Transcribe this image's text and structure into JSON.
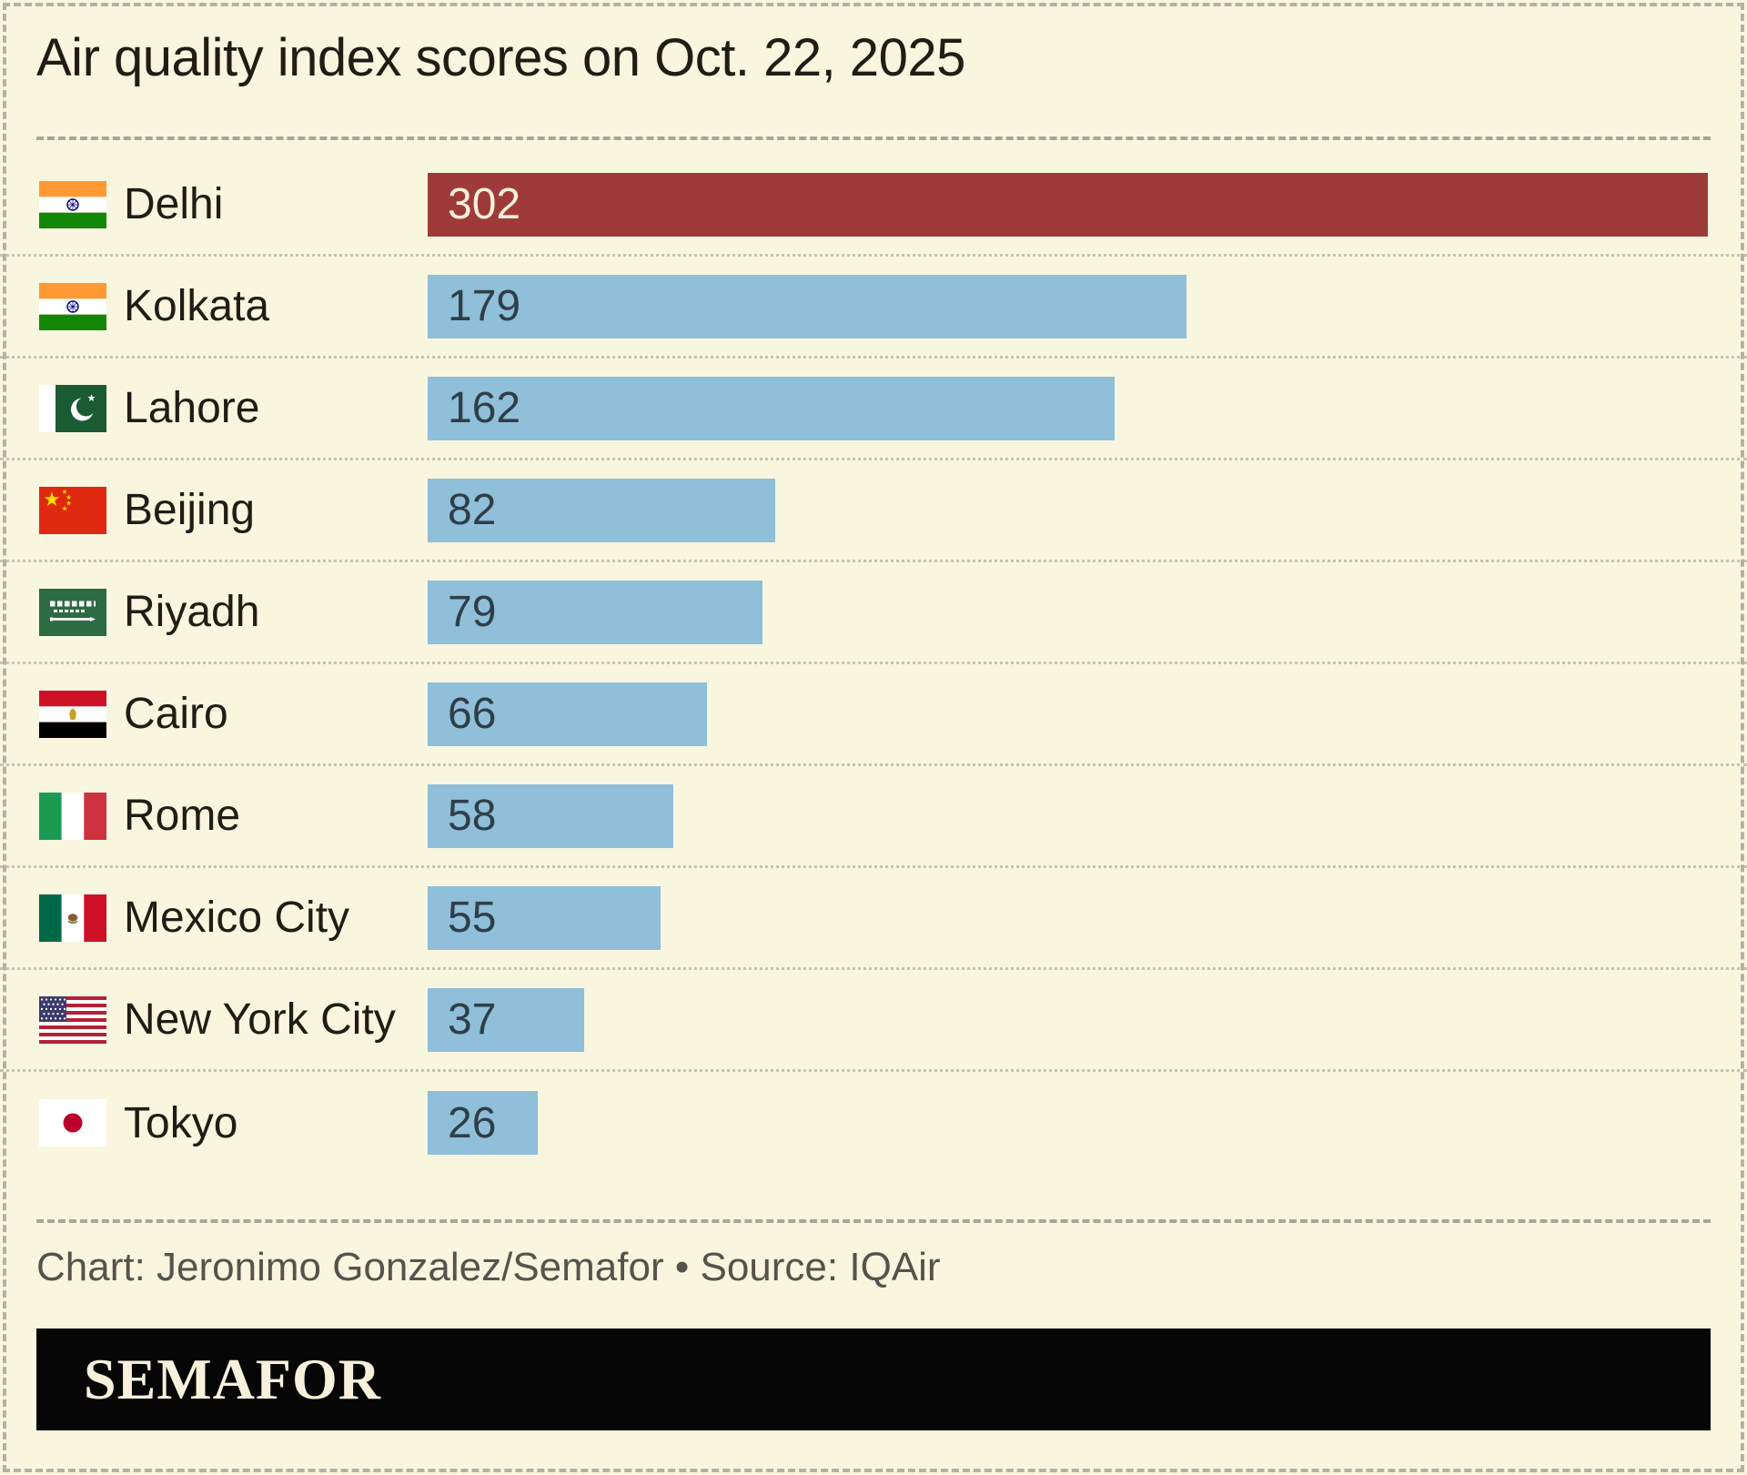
{
  "title": "Air quality index scores on Oct. 22, 2025",
  "credit": "Chart: Jeronimo Gonzalez/Semafor • Source: IQAir",
  "logo_text": "SEMAFOR",
  "colors": {
    "background": "#F9F6DF",
    "bar_blue": "#8FBFD9",
    "bar_red": "#9E3B38",
    "value_on_blue": "#2F3E47",
    "value_on_red": "#F6EFDC",
    "text": "#201D15",
    "credit_text": "#55534B"
  },
  "chart_data": {
    "type": "bar",
    "orientation": "horizontal",
    "title": "Air quality index scores on Oct. 22, 2025",
    "source": "IQAir",
    "max_value": 302,
    "value_range": [
      0,
      302
    ],
    "grid": false,
    "legend": false,
    "categories": [
      "Delhi",
      "Kolkata",
      "Lahore",
      "Beijing",
      "Riyadh",
      "Cairo",
      "Rome",
      "Mexico City",
      "New York City",
      "Tokyo"
    ],
    "values": [
      302,
      179,
      162,
      82,
      79,
      66,
      58,
      55,
      37,
      26
    ],
    "rows": [
      {
        "city": "Delhi",
        "flag": "india",
        "value": 302,
        "highlighted": true
      },
      {
        "city": "Kolkata",
        "flag": "india",
        "value": 179,
        "highlighted": false
      },
      {
        "city": "Lahore",
        "flag": "pakistan",
        "value": 162,
        "highlighted": false
      },
      {
        "city": "Beijing",
        "flag": "china",
        "value": 82,
        "highlighted": false
      },
      {
        "city": "Riyadh",
        "flag": "saudi-arabia",
        "value": 79,
        "highlighted": false
      },
      {
        "city": "Cairo",
        "flag": "egypt",
        "value": 66,
        "highlighted": false
      },
      {
        "city": "Rome",
        "flag": "italy",
        "value": 58,
        "highlighted": false
      },
      {
        "city": "Mexico City",
        "flag": "mexico",
        "value": 55,
        "highlighted": false
      },
      {
        "city": "New York City",
        "flag": "usa",
        "value": 37,
        "highlighted": false
      },
      {
        "city": "Tokyo",
        "flag": "japan",
        "value": 26,
        "highlighted": false
      }
    ]
  }
}
